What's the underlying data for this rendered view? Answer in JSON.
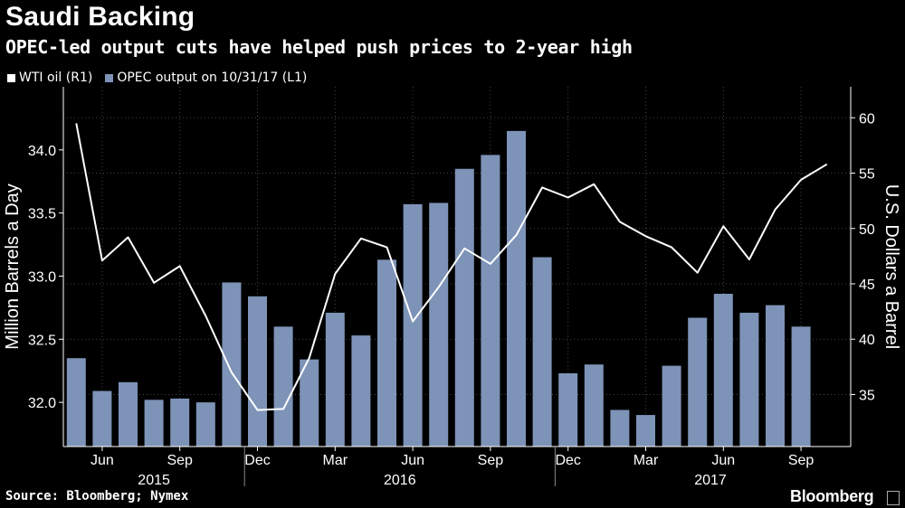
{
  "title": "Saudi Backing",
  "subtitle": "OPEC-led output cuts have helped push prices to 2-year high",
  "legend": [
    {
      "label": "WTI oil (R1)",
      "color": "#ffffff"
    },
    {
      "label": "OPEC output on 10/31/17 (L1)",
      "color": "#7d93b7"
    }
  ],
  "source": "Source: Bloomberg; Nymex",
  "brand": "Bloomberg",
  "chart_data": {
    "type": "bar+line",
    "categories": [
      "May 2015",
      "Jun 2015",
      "Jul 2015",
      "Aug 2015",
      "Sep 2015",
      "Oct 2015",
      "Nov 2015",
      "Dec 2015",
      "Jan 2016",
      "Feb 2016",
      "Mar 2016",
      "Apr 2016",
      "May 2016",
      "Jun 2016",
      "Jul 2016",
      "Aug 2016",
      "Sep 2016",
      "Oct 2016",
      "Nov 2016",
      "Dec 2016",
      "Jan 2017",
      "Feb 2017",
      "Mar 2017",
      "Apr 2017",
      "May 2017",
      "Jun 2017",
      "Jul 2017",
      "Aug 2017",
      "Sep 2017",
      "Oct 2017"
    ],
    "series": [
      {
        "name": "OPEC output on 10/31/17",
        "axis": "L1",
        "kind": "bar",
        "color": "#7d93b7",
        "values": [
          32.35,
          32.09,
          32.16,
          32.02,
          32.03,
          32.0,
          32.95,
          32.84,
          32.6,
          32.34,
          32.71,
          32.53,
          33.13,
          33.57,
          33.58,
          33.85,
          33.96,
          34.15,
          33.15,
          32.23,
          32.3,
          31.94,
          31.9,
          32.29,
          32.67,
          32.86,
          32.71,
          32.77,
          32.6,
          null
        ]
      },
      {
        "name": "WTI oil",
        "axis": "R1",
        "kind": "line",
        "color": "#ffffff",
        "values": [
          59.5,
          47.1,
          49.2,
          45.1,
          46.6,
          42.1,
          37.0,
          33.6,
          33.7,
          38.3,
          45.9,
          49.1,
          48.3,
          41.6,
          44.7,
          48.2,
          46.8,
          49.4,
          53.7,
          52.8,
          54.0,
          50.6,
          49.3,
          48.3,
          46.0,
          50.2,
          47.2,
          51.7,
          54.4,
          55.8
        ]
      }
    ],
    "left_axis": {
      "label": "Million Barrels a Day",
      "range": [
        31.65,
        34.5
      ],
      "ticks": [
        "32.0",
        "32.5",
        "33.0",
        "33.5",
        "34.0"
      ]
    },
    "right_axis": {
      "label": "U.S. Dollars a Barrel",
      "range": [
        30.3,
        62.8
      ],
      "ticks": [
        "35",
        "40",
        "45",
        "50",
        "55",
        "60"
      ]
    },
    "x_tick_labels": [
      {
        "label": "Jun",
        "index": 1
      },
      {
        "label": "Sep",
        "index": 4
      },
      {
        "label": "Dec",
        "index": 7
      },
      {
        "label": "Mar",
        "index": 10
      },
      {
        "label": "Jun",
        "index": 13
      },
      {
        "label": "Sep",
        "index": 16
      },
      {
        "label": "Dec",
        "index": 19
      },
      {
        "label": "Mar",
        "index": 22
      },
      {
        "label": "Jun",
        "index": 25
      },
      {
        "label": "Sep",
        "index": 28
      }
    ],
    "year_labels": [
      {
        "label": "2015",
        "index": 3.0
      },
      {
        "label": "2016",
        "index": 12.5
      },
      {
        "label": "2017",
        "index": 24.5
      }
    ],
    "year_separators": [
      6.5,
      18.5
    ],
    "gridlines": true
  }
}
